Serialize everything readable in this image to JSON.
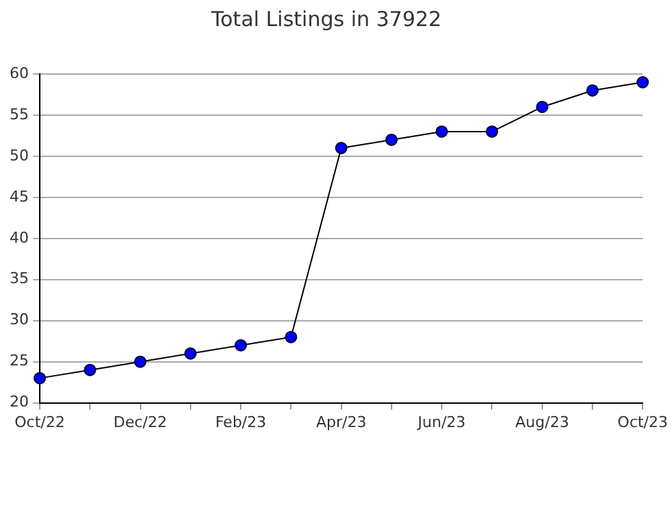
{
  "chart_data": {
    "type": "line",
    "title": "Total Listings in 37922",
    "categories": [
      "Oct/22",
      null,
      "Dec/22",
      null,
      "Feb/23",
      null,
      "Apr/23",
      null,
      "Jun/23",
      null,
      "Aug/23",
      null,
      "Oct/23"
    ],
    "series": [
      {
        "color": "#0000ff",
        "values": [
          23,
          24,
          25,
          26,
          27,
          28,
          51,
          52,
          53,
          53,
          56,
          58,
          59
        ]
      }
    ],
    "ylim": [
      20,
      60
    ],
    "yticks": [
      20,
      25,
      30,
      35,
      40,
      45,
      50,
      55,
      60
    ],
    "grid": "y",
    "legend": false,
    "marker": "circle",
    "line_style": "solid"
  }
}
